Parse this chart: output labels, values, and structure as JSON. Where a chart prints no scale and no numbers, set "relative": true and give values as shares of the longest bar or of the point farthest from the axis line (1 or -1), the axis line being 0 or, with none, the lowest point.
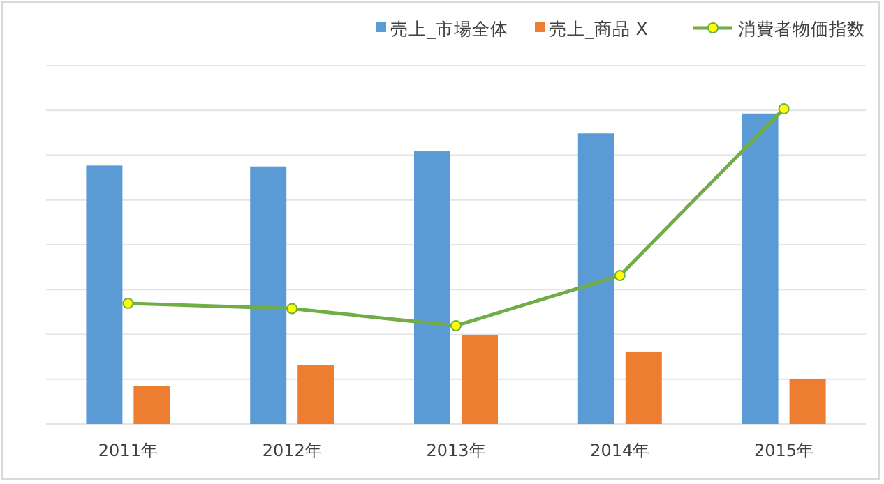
{
  "chart_data": {
    "type": "bar",
    "relative": true,
    "categories": [
      "2011年",
      "2012年",
      "2013年",
      "2014年",
      "2015年"
    ],
    "series": [
      {
        "name": "売上_市場全体",
        "color": "#5b9bd5",
        "values": [
          0.82,
          0.817,
          0.865,
          0.922,
          0.985
        ]
      },
      {
        "name": "売上_商品 X",
        "color": "#ed7d31",
        "values": [
          0.121,
          0.187,
          0.282,
          0.228,
          0.143
        ]
      },
      {
        "name": "消費者物価指数",
        "type": "line",
        "color": "#70ad47",
        "marker": "circle",
        "values": [
          0.383,
          0.366,
          0.312,
          0.471,
          1.0
        ]
      }
    ],
    "grid": "y",
    "legend": "top right"
  }
}
